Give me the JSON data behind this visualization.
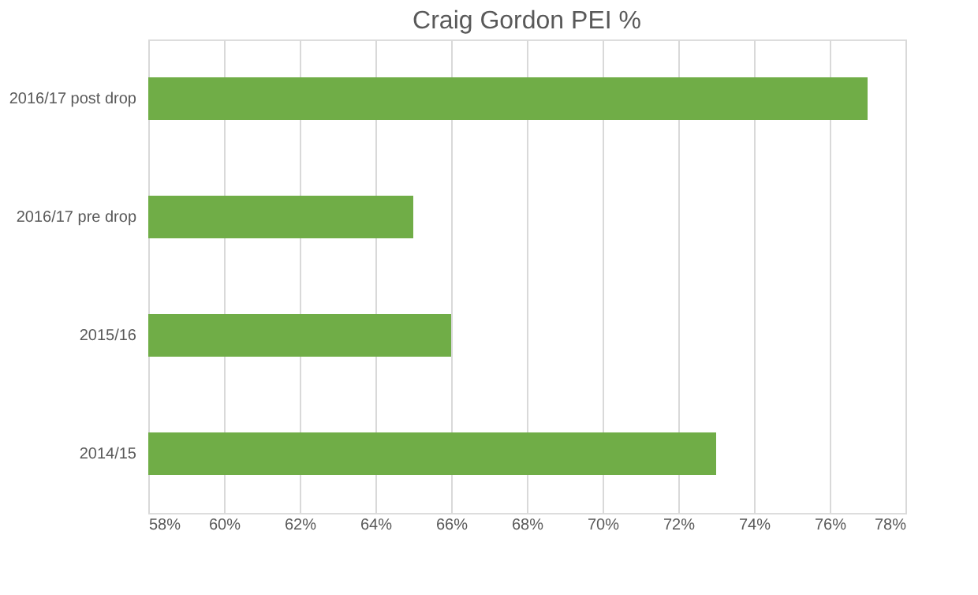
{
  "chart_data": {
    "type": "bar",
    "orientation": "horizontal",
    "title": "Craig Gordon PEI %",
    "categories": [
      "2016/17 post drop",
      "2016/17 pre drop",
      "2015/16",
      "2014/15"
    ],
    "values": [
      77,
      65,
      66,
      73
    ],
    "color": "#70ad47",
    "xlim": [
      58,
      78
    ],
    "xticks": [
      {
        "value": 58,
        "label": "58%"
      },
      {
        "value": 60,
        "label": "60%"
      },
      {
        "value": 62,
        "label": "62%"
      },
      {
        "value": 64,
        "label": "64%"
      },
      {
        "value": 66,
        "label": "66%"
      },
      {
        "value": 68,
        "label": "68%"
      },
      {
        "value": 70,
        "label": "70%"
      },
      {
        "value": 72,
        "label": "72%"
      },
      {
        "value": 74,
        "label": "74%"
      },
      {
        "value": 76,
        "label": "76%"
      },
      {
        "value": 78,
        "label": "78%"
      }
    ],
    "grid": "x"
  }
}
